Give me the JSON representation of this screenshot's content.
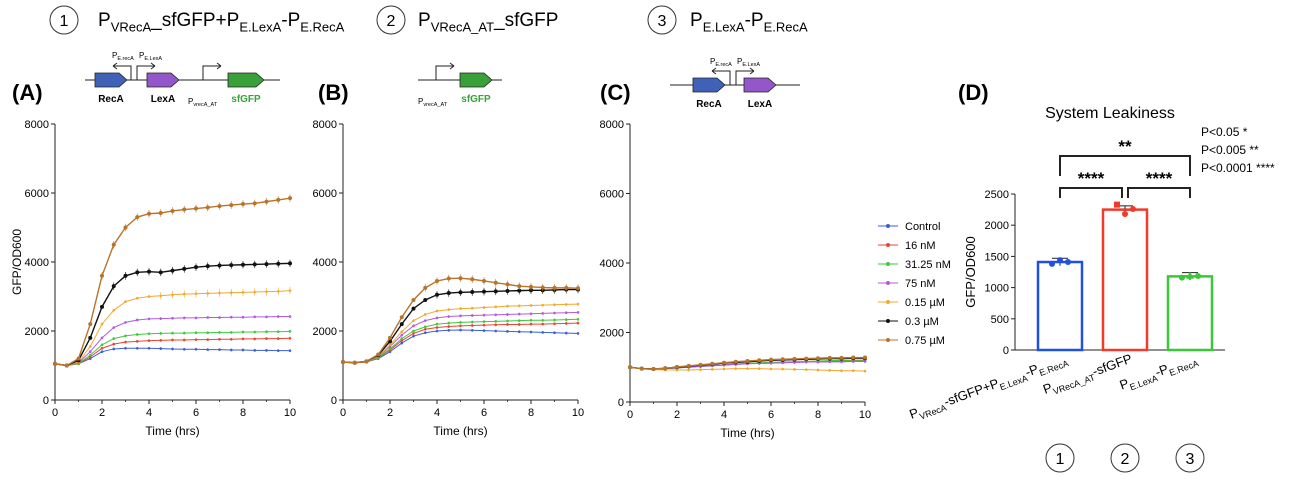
{
  "headers": [
    {
      "num": "1",
      "pre": "P",
      "s1": "VRecA",
      "mid": "_sfGFP+P",
      "s2": "E.LexA",
      "mid2": "-P",
      "s3": "E.RecA"
    },
    {
      "num": "2",
      "pre": "P",
      "s1": "VRecA_AT",
      "mid": "_sfGFP",
      "s2": "",
      "mid2": "",
      "s3": ""
    },
    {
      "num": "3",
      "pre": "P",
      "s1": "E.LexA",
      "mid": "-P",
      "s2": "E.RecA",
      "mid2": "",
      "s3": ""
    }
  ],
  "panel_letters": [
    "(A)",
    "(B)",
    "(C)",
    "(D)"
  ],
  "constructs": {
    "A": {
      "genes": [
        "RecA",
        "LexA",
        "sfGFP"
      ],
      "promoters": [
        "PE.recA",
        "PE.LexA",
        "PvrecA_AT"
      ]
    },
    "B": {
      "genes": [
        "sfGFP"
      ],
      "promoters": [
        "PvrecA_AT"
      ]
    },
    "C": {
      "genes": [
        "RecA",
        "LexA"
      ],
      "promoters": [
        "PE.recA",
        "PE.LexA"
      ]
    }
  },
  "colors": {
    "Control": "#3a5fd9",
    "16 nM": "#e8462d",
    "31.25 nM": "#3ec93e",
    "75 nM": "#b35be0",
    "0.15 µM": "#f3a830",
    "0.3 µM": "#111111",
    "0.75 µM": "#b8742a",
    "recA_gene": "#3f62b8",
    "lexA_gene": "#9457c9",
    "gfp_gene": "#3aa13a",
    "bar1": "#2050e0",
    "bar2": "#f03a2a",
    "bar3": "#38c838"
  },
  "chart_data": [
    {
      "type": "line",
      "panel": "A",
      "xlabel": "Time (hrs)",
      "ylabel": "GFP/OD600",
      "xlim": [
        0,
        10
      ],
      "ylim": [
        0,
        8000
      ],
      "xticks": [
        "0",
        "2",
        "4",
        "6",
        "8",
        "10"
      ],
      "yticks": [
        "0",
        "2000",
        "4000",
        "6000",
        "8000"
      ],
      "x": [
        0,
        0.5,
        1,
        1.5,
        2,
        2.5,
        3,
        3.5,
        4,
        4.5,
        5,
        5.5,
        6,
        6.5,
        7,
        7.5,
        8,
        8.5,
        9,
        9.5,
        10
      ],
      "series": [
        {
          "name": "Control",
          "values": [
            1050,
            1000,
            1050,
            1200,
            1400,
            1480,
            1500,
            1500,
            1500,
            1490,
            1480,
            1470,
            1470,
            1460,
            1460,
            1450,
            1450,
            1440,
            1440,
            1430,
            1430
          ]
        },
        {
          "name": "16 nM",
          "values": [
            1050,
            1000,
            1050,
            1250,
            1500,
            1620,
            1680,
            1700,
            1720,
            1730,
            1740,
            1740,
            1750,
            1750,
            1760,
            1760,
            1770,
            1770,
            1780,
            1780,
            1790
          ]
        },
        {
          "name": "31.25 nM",
          "values": [
            1050,
            1000,
            1060,
            1300,
            1600,
            1780,
            1860,
            1900,
            1920,
            1930,
            1940,
            1940,
            1950,
            1950,
            1960,
            1960,
            1970,
            1970,
            1980,
            1980,
            1990
          ]
        },
        {
          "name": "75 nM",
          "values": [
            1050,
            1000,
            1080,
            1400,
            1800,
            2100,
            2250,
            2320,
            2350,
            2360,
            2370,
            2380,
            2380,
            2390,
            2390,
            2400,
            2400,
            2410,
            2410,
            2420,
            2420
          ]
        },
        {
          "name": "0.15 µM",
          "values": [
            1050,
            1000,
            1100,
            1550,
            2200,
            2600,
            2850,
            2950,
            3000,
            3020,
            3050,
            3070,
            3080,
            3090,
            3100,
            3110,
            3120,
            3130,
            3140,
            3150,
            3170
          ]
        },
        {
          "name": "0.3 µM",
          "values": [
            1050,
            1000,
            1150,
            1800,
            2700,
            3300,
            3600,
            3700,
            3720,
            3700,
            3750,
            3800,
            3850,
            3880,
            3900,
            3910,
            3920,
            3930,
            3940,
            3950,
            3960
          ]
        },
        {
          "name": "0.75 µM",
          "values": [
            1050,
            1000,
            1200,
            2200,
            3600,
            4500,
            5000,
            5300,
            5400,
            5420,
            5480,
            5520,
            5550,
            5580,
            5620,
            5650,
            5680,
            5700,
            5750,
            5800,
            5850
          ]
        }
      ]
    },
    {
      "type": "line",
      "panel": "B",
      "xlabel": "Time (hrs)",
      "ylabel": "",
      "xlim": [
        0,
        10
      ],
      "ylim": [
        0,
        8000
      ],
      "xticks": [
        "0",
        "2",
        "4",
        "6",
        "8",
        "10"
      ],
      "yticks": [
        "0",
        "2000",
        "4000",
        "6000",
        "8000"
      ],
      "x": [
        0,
        0.5,
        1,
        1.5,
        2,
        2.5,
        3,
        3.5,
        4,
        4.5,
        5,
        5.5,
        6,
        6.5,
        7,
        7.5,
        8,
        8.5,
        9,
        9.5,
        10
      ],
      "series": [
        {
          "name": "Control",
          "values": [
            1100,
            1080,
            1100,
            1200,
            1400,
            1650,
            1850,
            1950,
            2000,
            2020,
            2030,
            2020,
            2010,
            2000,
            1990,
            1980,
            1970,
            1960,
            1950,
            1940,
            1930
          ]
        },
        {
          "name": "16 nM",
          "values": [
            1100,
            1080,
            1100,
            1220,
            1450,
            1720,
            1930,
            2050,
            2100,
            2130,
            2150,
            2160,
            2170,
            2180,
            2190,
            2190,
            2200,
            2200,
            2210,
            2220,
            2230
          ]
        },
        {
          "name": "31.25 nM",
          "values": [
            1100,
            1080,
            1100,
            1230,
            1480,
            1780,
            2000,
            2120,
            2200,
            2230,
            2250,
            2260,
            2270,
            2280,
            2290,
            2300,
            2310,
            2310,
            2320,
            2330,
            2340
          ]
        },
        {
          "name": "75 nM",
          "values": [
            1100,
            1080,
            1110,
            1250,
            1550,
            1880,
            2150,
            2300,
            2380,
            2420,
            2440,
            2450,
            2460,
            2470,
            2480,
            2490,
            2500,
            2510,
            2520,
            2530,
            2540
          ]
        },
        {
          "name": "0.15 µM",
          "values": [
            1100,
            1080,
            1110,
            1270,
            1600,
            1980,
            2300,
            2480,
            2580,
            2620,
            2650,
            2660,
            2680,
            2700,
            2720,
            2730,
            2740,
            2750,
            2760,
            2770,
            2780
          ]
        },
        {
          "name": "0.3 µM",
          "values": [
            1100,
            1080,
            1120,
            1300,
            1700,
            2200,
            2650,
            2900,
            3050,
            3100,
            3120,
            3130,
            3140,
            3150,
            3160,
            3170,
            3180,
            3180,
            3190,
            3200,
            3200
          ]
        },
        {
          "name": "0.75 µM",
          "values": [
            1100,
            1080,
            1120,
            1320,
            1800,
            2400,
            2900,
            3250,
            3450,
            3520,
            3530,
            3500,
            3450,
            3400,
            3350,
            3300,
            3280,
            3260,
            3250,
            3250,
            3240
          ]
        }
      ]
    },
    {
      "type": "line",
      "panel": "C",
      "xlabel": "Time (hrs)",
      "ylabel": "",
      "xlim": [
        0,
        10
      ],
      "ylim": [
        0,
        8000
      ],
      "xticks": [
        "0",
        "2",
        "4",
        "6",
        "8",
        "10"
      ],
      "yticks": [
        "0",
        "2000",
        "4000",
        "6000",
        "8000"
      ],
      "x": [
        0,
        0.5,
        1,
        1.5,
        2,
        2.5,
        3,
        3.5,
        4,
        4.5,
        5,
        5.5,
        6,
        6.5,
        7,
        7.5,
        8,
        8.5,
        9,
        9.5,
        10
      ],
      "series": [
        {
          "name": "Control",
          "values": [
            1000,
            960,
            950,
            960,
            980,
            1000,
            1020,
            1040,
            1060,
            1080,
            1100,
            1110,
            1120,
            1130,
            1140,
            1150,
            1150,
            1160,
            1160,
            1170,
            1170
          ]
        },
        {
          "name": "16 nM",
          "values": [
            1000,
            960,
            950,
            960,
            990,
            1010,
            1030,
            1050,
            1070,
            1090,
            1110,
            1120,
            1130,
            1140,
            1150,
            1160,
            1170,
            1170,
            1180,
            1190,
            1190
          ]
        },
        {
          "name": "31.25 nM",
          "values": [
            1000,
            960,
            950,
            960,
            990,
            1010,
            1030,
            1050,
            1070,
            1090,
            1110,
            1130,
            1140,
            1150,
            1160,
            1170,
            1180,
            1190,
            1200,
            1200,
            1210
          ]
        },
        {
          "name": "75 nM",
          "values": [
            1000,
            960,
            950,
            960,
            990,
            1010,
            1030,
            1050,
            1070,
            1090,
            1100,
            1110,
            1120,
            1130,
            1140,
            1150,
            1150,
            1160,
            1160,
            1170,
            1170
          ]
        },
        {
          "name": "0.15 µM",
          "values": [
            1000,
            950,
            930,
            920,
            920,
            920,
            930,
            940,
            950,
            960,
            960,
            960,
            950,
            950,
            940,
            930,
            920,
            910,
            900,
            900,
            890
          ]
        },
        {
          "name": "0.3 µM",
          "values": [
            1000,
            960,
            950,
            970,
            1000,
            1030,
            1060,
            1090,
            1120,
            1140,
            1160,
            1180,
            1200,
            1210,
            1220,
            1230,
            1240,
            1250,
            1250,
            1260,
            1260
          ]
        },
        {
          "name": "0.75 µM",
          "values": [
            1000,
            960,
            950,
            970,
            1010,
            1040,
            1070,
            1100,
            1130,
            1160,
            1180,
            1200,
            1220,
            1230,
            1240,
            1250,
            1260,
            1270,
            1270,
            1280,
            1280
          ]
        }
      ]
    },
    {
      "type": "bar",
      "panel": "D",
      "title": "System Leakiness",
      "ylabel": "GFP/OD600",
      "ylim": [
        0,
        2500
      ],
      "yticks": [
        "0",
        "500",
        "1000",
        "1500",
        "2000",
        "2500"
      ],
      "categories": [
        "1",
        "2",
        "3"
      ],
      "category_labels": [
        {
          "pre": "P",
          "s1": "VRecA",
          "mid": "-sfGFP+P",
          "s2": "E.LexA",
          "mid2": "-P",
          "s3": "E.RecA"
        },
        {
          "pre": "P",
          "s1": "VRecA_AT",
          "mid": "-sfGFP",
          "s2": "",
          "mid2": "",
          "s3": ""
        },
        {
          "pre": "P",
          "s1": "E.LexA",
          "mid": "-P",
          "s2": "E.RecA",
          "mid2": "",
          "s3": ""
        }
      ],
      "values": [
        1410,
        2250,
        1180
      ],
      "points": [
        [
          1380,
          1440,
          1410
        ],
        [
          2330,
          2180,
          2260
        ],
        [
          1160,
          1190,
          1185
        ]
      ],
      "significance": [
        "****",
        "****",
        "**"
      ],
      "pvalue_legend": [
        "P<0.05 *",
        "P<0.005 **",
        "P<0.0001 ****"
      ]
    }
  ]
}
